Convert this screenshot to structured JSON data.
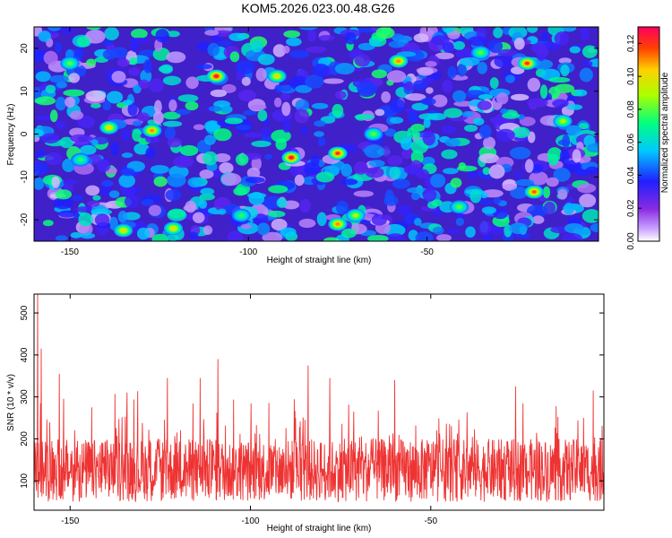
{
  "chart_data": [
    {
      "type": "heatmap",
      "title": "KOM5.2026.023.00.48.G26",
      "xlabel": "Height of straight line (km)",
      "ylabel": "Frequency (Hz)",
      "xlim": [
        -160,
        -2
      ],
      "ylim": [
        -25,
        25
      ],
      "xticks": [
        -150,
        -100,
        -50
      ],
      "xtick_labels": [
        "-150",
        "-100",
        "-50"
      ],
      "yticks": [
        -20,
        -10,
        0,
        10,
        20
      ],
      "ytick_labels": [
        "-20",
        "-10",
        "0",
        "10",
        "20"
      ],
      "colorbar": {
        "label": "Normalized spectral amplitude",
        "range": [
          0,
          0.13
        ],
        "ticks": [
          0,
          0.02,
          0.04,
          0.06,
          0.08,
          0.1,
          0.12
        ],
        "tick_labels": [
          "0.00",
          "0.02",
          "0.04",
          "0.06",
          "0.08",
          "0.10",
          "0.12"
        ]
      },
      "peaks": [
        {
          "x": -109,
          "y": 13.5,
          "v": 0.125
        },
        {
          "x": -88,
          "y": -5.5,
          "v": 0.125
        },
        {
          "x": -75,
          "y": -4.5,
          "v": 0.12
        },
        {
          "x": -22,
          "y": 16.5,
          "v": 0.12
        },
        {
          "x": -20,
          "y": -13.5,
          "v": 0.115
        },
        {
          "x": -58,
          "y": 17,
          "v": 0.11
        },
        {
          "x": -127,
          "y": 0.8,
          "v": 0.11
        },
        {
          "x": -139,
          "y": 1.5,
          "v": 0.1
        },
        {
          "x": -75,
          "y": -21,
          "v": 0.11
        },
        {
          "x": -121,
          "y": -22,
          "v": 0.1
        },
        {
          "x": -135,
          "y": -22.5,
          "v": 0.1
        },
        {
          "x": -92,
          "y": 13.5,
          "v": 0.1
        },
        {
          "x": -12,
          "y": 3,
          "v": 0.09
        },
        {
          "x": -70,
          "y": -19,
          "v": 0.09
        },
        {
          "x": -150,
          "y": 16.5,
          "v": 0.08
        },
        {
          "x": -35,
          "y": 19,
          "v": 0.08
        },
        {
          "x": -41,
          "y": -17,
          "v": 0.08
        },
        {
          "x": -147,
          "y": -6,
          "v": 0.075
        },
        {
          "x": -65,
          "y": 0,
          "v": 0.08
        },
        {
          "x": -102,
          "y": -19,
          "v": 0.075
        }
      ],
      "background_level": 0.03
    },
    {
      "type": "line",
      "xlabel": "Height of straight line (km)",
      "ylabel": "SNR (10 * v/v)",
      "xlim": [
        -160,
        -2
      ],
      "ylim": [
        30,
        545
      ],
      "xticks": [
        -150,
        -100,
        -50
      ],
      "xtick_labels": [
        "-150",
        "-100",
        "-50"
      ],
      "yticks": [
        100,
        200,
        300,
        400,
        500
      ],
      "ytick_labels": [
        "100",
        "200",
        "300",
        "400",
        "500"
      ],
      "color": "#ee3333",
      "series_name": "SNR",
      "summary": {
        "baseline_mean": 125,
        "typical_min": 45,
        "typical_max": 330
      },
      "notable_peaks": [
        {
          "x": -159,
          "y": 545
        },
        {
          "x": -158,
          "y": 415
        },
        {
          "x": -109,
          "y": 390
        },
        {
          "x": -84,
          "y": 375
        },
        {
          "x": -153,
          "y": 355
        },
        {
          "x": -123,
          "y": 345
        },
        {
          "x": -60,
          "y": 340
        },
        {
          "x": -114,
          "y": 345
        },
        {
          "x": -78,
          "y": 345
        },
        {
          "x": -5,
          "y": 315
        }
      ]
    }
  ]
}
